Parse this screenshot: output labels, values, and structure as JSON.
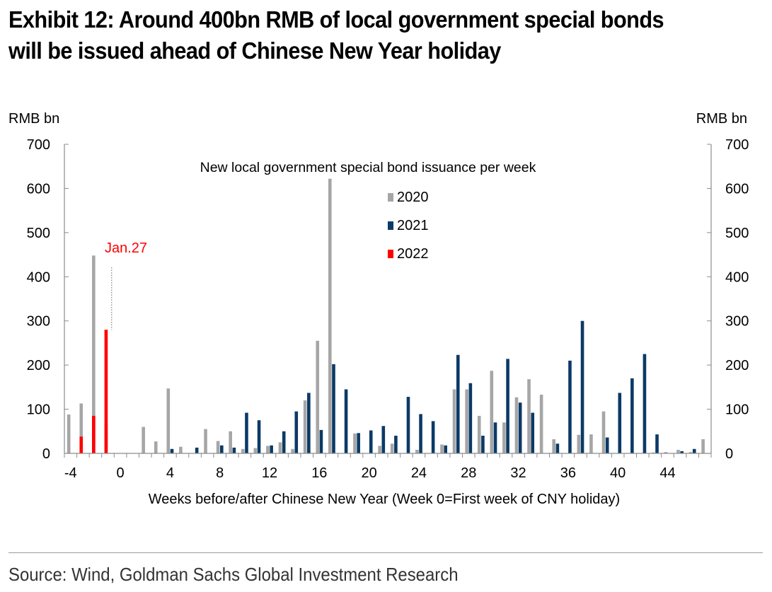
{
  "title": {
    "line1": "Exhibit 12: Around 400bn RMB of local government special bonds",
    "line2": "will be issued ahead of Chinese New Year holiday"
  },
  "source": "Source: Wind, Goldman Sachs Global Investment Research",
  "chart_data": {
    "type": "bar",
    "title": "New local government special bond issuance per week",
    "xlabel": "Weeks before/after Chinese New Year (Week 0=First week of CNY holiday)",
    "ylabel_left": "RMB bn",
    "ylabel_right": "RMB bn",
    "ylim": [
      0,
      700
    ],
    "yticks": [
      0,
      100,
      200,
      300,
      400,
      500,
      600,
      700
    ],
    "xlim": [
      -4.5,
      47.5
    ],
    "xticks": [
      -4,
      0,
      4,
      8,
      12,
      16,
      20,
      24,
      28,
      32,
      36,
      40,
      44
    ],
    "legend_position": "top-center",
    "annotation": {
      "text": "Jan.27",
      "week": -0.7,
      "color": "#ff0000"
    },
    "series": [
      {
        "name": "2020",
        "color": "#a6a6a6",
        "weeks": [
          -4,
          -3,
          -2,
          -1,
          2,
          3,
          4,
          5,
          7,
          8,
          9,
          10,
          11,
          12,
          13,
          14,
          15,
          16,
          17,
          19,
          21,
          22,
          24,
          26,
          27,
          28,
          29,
          30,
          31,
          32,
          33,
          34,
          35,
          37,
          38,
          39,
          43,
          44,
          45,
          46,
          47
        ],
        "values": [
          88,
          113,
          448,
          65,
          60,
          27,
          147,
          15,
          55,
          28,
          50,
          10,
          12,
          17,
          25,
          10,
          120,
          255,
          622,
          45,
          17,
          22,
          8,
          20,
          145,
          145,
          85,
          187,
          70,
          127,
          168,
          133,
          32,
          42,
          43,
          95,
          2,
          3,
          8,
          3,
          32
        ]
      },
      {
        "name": "2021",
        "color": "#0b3a66",
        "weeks": [
          4,
          6,
          8,
          9,
          10,
          11,
          12,
          13,
          14,
          15,
          16,
          17,
          18,
          19,
          20,
          21,
          22,
          23,
          24,
          25,
          26,
          27,
          28,
          29,
          30,
          31,
          32,
          33,
          35,
          36,
          37,
          39,
          40,
          41,
          42,
          43,
          45,
          46
        ],
        "values": [
          10,
          13,
          18,
          13,
          92,
          75,
          18,
          50,
          95,
          137,
          53,
          202,
          145,
          46,
          52,
          62,
          40,
          128,
          89,
          73,
          18,
          223,
          159,
          40,
          70,
          214,
          115,
          92,
          22,
          210,
          300,
          36,
          137,
          170,
          225,
          43,
          5,
          10
        ]
      },
      {
        "name": "2022",
        "color": "#ff0000",
        "weeks": [
          -3,
          -2,
          -1
        ],
        "values": [
          38,
          85,
          280
        ]
      }
    ]
  }
}
